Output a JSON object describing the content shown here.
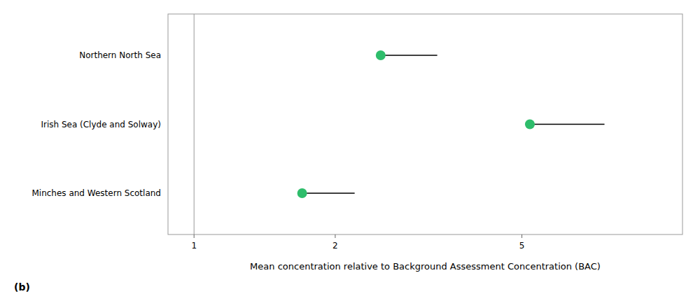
{
  "chart_data": {
    "type": "dot",
    "orientation": "horizontal",
    "log": "x",
    "grid": false,
    "categories": [
      "Minches and Western Scotland",
      "Irish Sea (Clyde and Solway)",
      "Northern North Sea"
    ],
    "series": [
      {
        "type": "scatter",
        "marker": "circle",
        "color": "#2ebd6b",
        "values": [
          1.7,
          5.2,
          2.5
        ]
      },
      {
        "type": "line",
        "line_style": "solid",
        "color": "#000000",
        "values": [
          2.2,
          7.5,
          3.3
        ]
      }
    ],
    "reference_lines": [
      {
        "value": 1.0,
        "color": "#999999"
      }
    ],
    "xlim": [
      0.88,
      11.0
    ],
    "xticks": [
      1,
      2,
      5
    ],
    "x_label": "Mean concentration relative to Background Assessment Concentration (BAC)",
    "annotations": [
      "(b)"
    ]
  }
}
